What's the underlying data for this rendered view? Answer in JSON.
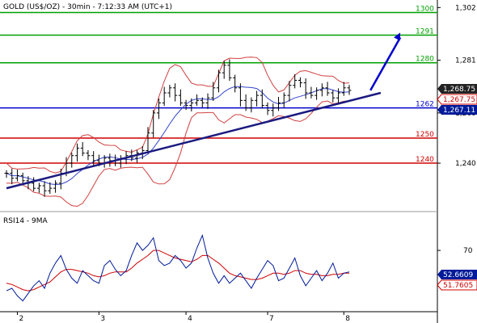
{
  "header": {
    "title": "GOLD (US$/OZ) - 30min - 7:12:33 AM (UTC+1)"
  },
  "rsi_panel": {
    "title": "RSI14 - 9MA"
  },
  "colors": {
    "green": "#00a000",
    "blue": "#0000cc",
    "red": "#d00000",
    "navy": "#1a1a80",
    "price_tag_dark": "#222222",
    "rsi_tag_blue": "#001a99",
    "bb": "#d04040",
    "ma_blue": "#3344cc"
  },
  "chart_data": [
    {
      "type": "line",
      "title": "GOLD (US$/OZ) - 30min - 7:12:33 AM (UTC+1)",
      "x_ticks": [
        "2",
        "3",
        "4",
        "7",
        "8"
      ],
      "y_ticks": [
        "1,302",
        "1,281",
        "1,260",
        "1,240"
      ],
      "ylim": [
        1222,
        1305
      ],
      "levels": [
        {
          "value": 1300,
          "label": "1300",
          "color": "green"
        },
        {
          "value": 1291,
          "label": "1291",
          "color": "green"
        },
        {
          "value": 1280,
          "label": "1280",
          "color": "green"
        },
        {
          "value": 1262,
          "label": "1262",
          "color": "blue"
        },
        {
          "value": 1250,
          "label": "1250",
          "color": "red"
        },
        {
          "value": 1240,
          "label": "1240",
          "color": "red"
        }
      ],
      "price_tags": [
        {
          "value": "1,268.75",
          "style": "dark"
        },
        {
          "value": "1,267.75",
          "style": "red"
        },
        {
          "value": "1,267.11",
          "style": "blue"
        }
      ],
      "series": [
        {
          "name": "Close",
          "values": [
            1236,
            1234,
            1235,
            1233,
            1232,
            1230,
            1231,
            1229,
            1230,
            1232,
            1236,
            1240,
            1243,
            1246,
            1244,
            1243,
            1241,
            1240,
            1242,
            1241,
            1240,
            1242,
            1243,
            1242,
            1244,
            1245,
            1252,
            1260,
            1264,
            1268,
            1270,
            1267,
            1264,
            1263,
            1264,
            1265,
            1264,
            1266,
            1270,
            1276,
            1279,
            1274,
            1270,
            1265,
            1262,
            1265,
            1267,
            1263,
            1261,
            1262,
            1264,
            1267,
            1271,
            1273,
            1272,
            1268,
            1267,
            1269,
            1270,
            1268,
            1266,
            1268,
            1270,
            1269
          ]
        }
      ],
      "trendline": {
        "from": [
          0,
          1230
        ],
        "to": [
          67,
          1268
        ]
      },
      "arrow": {
        "from": [
          66,
          1269
        ],
        "to": [
          70,
          1292
        ]
      }
    },
    {
      "type": "line",
      "title": "RSI14 - 9MA",
      "y_ticks": [
        "70"
      ],
      "ylim": [
        24,
        88
      ],
      "value_tags": [
        {
          "value": "52.6609",
          "style": "blue"
        },
        {
          "value": "51.7605",
          "style": "red"
        }
      ],
      "series": [
        {
          "name": "RSI14",
          "values": [
            38,
            40,
            34,
            30,
            36,
            42,
            46,
            40,
            52,
            60,
            66,
            55,
            48,
            44,
            54,
            50,
            46,
            44,
            58,
            62,
            55,
            50,
            54,
            66,
            76,
            70,
            74,
            80,
            62,
            58,
            60,
            66,
            62,
            56,
            60,
            72,
            82,
            64,
            52,
            44,
            50,
            44,
            48,
            52,
            46,
            40,
            48,
            55,
            62,
            58,
            46,
            48,
            56,
            64,
            50,
            42,
            48,
            54,
            46,
            52,
            60,
            48,
            52,
            53
          ]
        },
        {
          "name": "9MA",
          "values": [
            44,
            43,
            41,
            39,
            38,
            39,
            41,
            43,
            45,
            49,
            53,
            55,
            55,
            54,
            53,
            52,
            50,
            49,
            50,
            52,
            53,
            53,
            53,
            56,
            60,
            63,
            66,
            70,
            70,
            68,
            66,
            64,
            63,
            62,
            61,
            63,
            66,
            66,
            63,
            60,
            56,
            52,
            50,
            49,
            48,
            47,
            47,
            48,
            50,
            52,
            52,
            51,
            52,
            54,
            54,
            52,
            51,
            51,
            50,
            50,
            51,
            51,
            52,
            52
          ]
        }
      ]
    }
  ]
}
